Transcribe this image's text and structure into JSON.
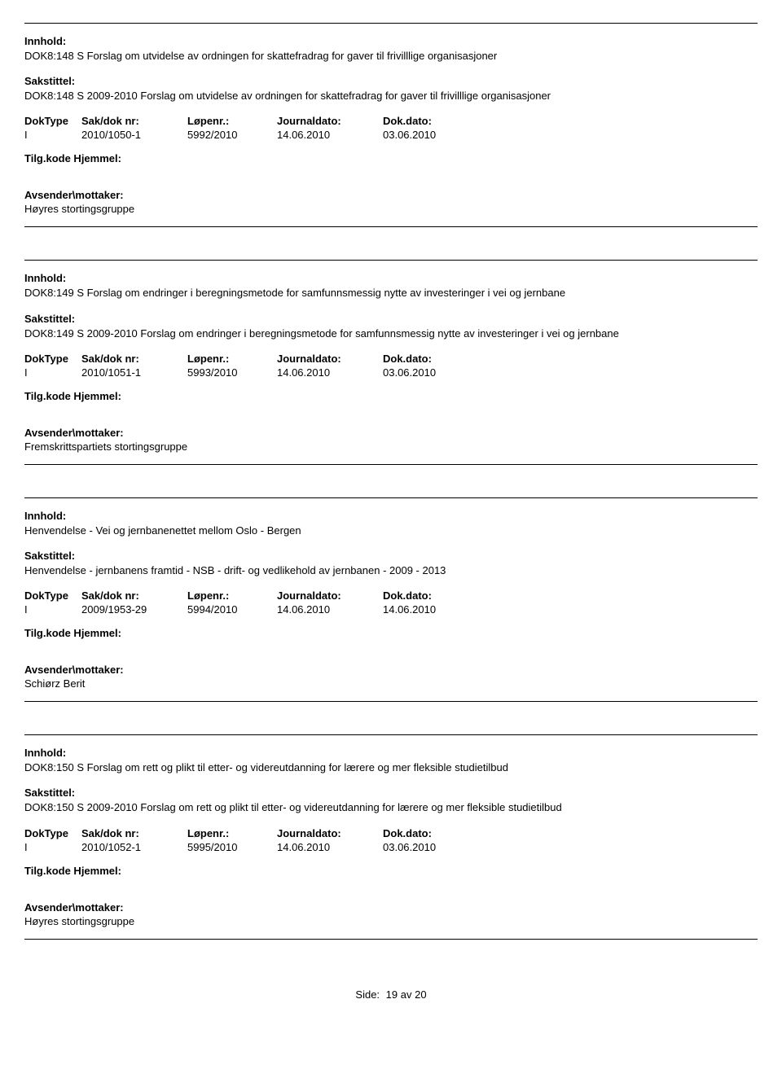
{
  "labels": {
    "innhold": "Innhold:",
    "sakstittel": "Sakstittel:",
    "doktype": "DokType",
    "sakdoknr": "Sak/dok nr:",
    "lopenr": "Løpenr.:",
    "journaldato": "Journaldato:",
    "dokdato": "Dok.dato:",
    "tilgkode": "Tilg.kode Hjemmel:",
    "avsender": "Avsender\\mottaker:",
    "side": "Side:",
    "av": "av"
  },
  "records": [
    {
      "innhold": "DOK8:148 S Forslag om utvidelse av ordningen for skattefradrag for gaver til frivilllige organisasjoner",
      "sakstittel": "DOK8:148 S 2009-2010 Forslag om utvidelse av ordningen for skattefradrag for gaver til frivilllige organisasjoner",
      "doktype": "I",
      "sakdoknr": "2010/1050-1",
      "lopenr": "5992/2010",
      "journaldato": "14.06.2010",
      "dokdato": "03.06.2010",
      "avsender": "Høyres stortingsgruppe"
    },
    {
      "innhold": "DOK8:149 S Forslag om endringer i beregningsmetode for samfunnsmessig nytte av investeringer i vei og jernbane",
      "sakstittel": "DOK8:149 S 2009-2010 Forslag om endringer i beregningsmetode for samfunnsmessig nytte av investeringer i vei og jernbane",
      "doktype": "I",
      "sakdoknr": "2010/1051-1",
      "lopenr": "5993/2010",
      "journaldato": "14.06.2010",
      "dokdato": "03.06.2010",
      "avsender": "Fremskrittspartiets stortingsgruppe"
    },
    {
      "innhold": "Henvendelse - Vei og jernbanenettet mellom Oslo - Bergen",
      "sakstittel": "Henvendelse - jernbanens framtid - NSB - drift- og vedlikehold av jernbanen - 2009 - 2013",
      "doktype": "I",
      "sakdoknr": "2009/1953-29",
      "lopenr": "5994/2010",
      "journaldato": "14.06.2010",
      "dokdato": "14.06.2010",
      "avsender": "Schiørz Berit"
    },
    {
      "innhold": "DOK8:150 S Forslag om rett og plikt til etter- og videreutdanning for lærere og mer fleksible studietilbud",
      "sakstittel": "DOK8:150 S 2009-2010 Forslag om rett og plikt til etter- og videreutdanning for lærere og mer fleksible studietilbud",
      "doktype": "I",
      "sakdoknr": "2010/1052-1",
      "lopenr": "5995/2010",
      "journaldato": "14.06.2010",
      "dokdato": "03.06.2010",
      "avsender": "Høyres stortingsgruppe"
    }
  ],
  "page": {
    "current": "19",
    "total": "20"
  }
}
